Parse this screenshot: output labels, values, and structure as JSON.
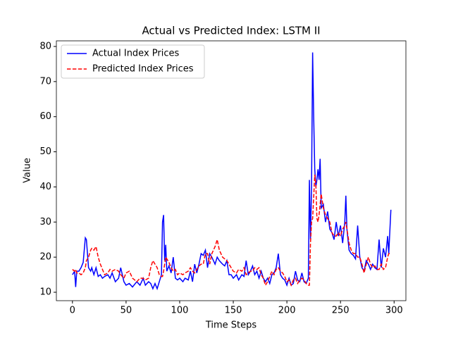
{
  "chart_data": {
    "type": "line",
    "title": "Actual vs Predicted Index: LSTM II",
    "x_label": "Time Steps",
    "y_label": "Value",
    "x": [
      0,
      2,
      3,
      4,
      6,
      8,
      10,
      12,
      13,
      15,
      17,
      18,
      20,
      22,
      24,
      26,
      28,
      30,
      33,
      35,
      37,
      40,
      43,
      45,
      48,
      50,
      53,
      56,
      60,
      63,
      66,
      68,
      71,
      73,
      75,
      77,
      79,
      81,
      83,
      84,
      85,
      86,
      87,
      88,
      90,
      92,
      94,
      96,
      98,
      100,
      103,
      105,
      108,
      110,
      112,
      114,
      116,
      118,
      120,
      122,
      124,
      126,
      128,
      130,
      133,
      135,
      137,
      140,
      142,
      144,
      146,
      148,
      150,
      153,
      155,
      158,
      160,
      162,
      164,
      166,
      168,
      170,
      172,
      174,
      176,
      178,
      180,
      182,
      184,
      186,
      188,
      190,
      192,
      194,
      196,
      198,
      200,
      202,
      204,
      206,
      208,
      210,
      212,
      214,
      216,
      218,
      220,
      221,
      222,
      223,
      224,
      225,
      226,
      227,
      228,
      229,
      230,
      231,
      232,
      234,
      236,
      238,
      240,
      242,
      244,
      246,
      248,
      250,
      252,
      254,
      255,
      256,
      258,
      260,
      262,
      264,
      266,
      268,
      270,
      272,
      274,
      276,
      278,
      280,
      282,
      284,
      286,
      288,
      290,
      292,
      294,
      295,
      297
    ],
    "series": [
      {
        "name": "Actual Index Prices",
        "color": "#0000ff",
        "linestyle": "solid",
        "values": [
          15,
          16,
          11.5,
          16,
          16,
          17,
          18.5,
          25.5,
          25,
          17,
          16,
          17,
          15,
          17,
          14.5,
          15,
          14,
          14.5,
          15,
          14,
          15.5,
          13,
          14,
          17,
          13,
          12,
          12.5,
          11.5,
          13,
          12,
          14,
          12,
          13,
          12.5,
          11,
          12.5,
          11,
          13,
          15,
          30,
          32,
          19,
          23.5,
          16,
          17.5,
          15.5,
          20,
          14,
          13.5,
          14,
          13,
          14,
          13.5,
          16,
          13,
          18,
          15.5,
          18,
          21,
          20.5,
          22,
          17,
          21,
          20,
          18,
          20,
          19,
          18,
          17.5,
          19,
          15,
          15,
          14,
          15,
          13.5,
          15,
          14.5,
          19,
          15,
          16,
          17.5,
          15,
          16,
          14,
          16,
          14,
          13,
          14,
          12.5,
          15,
          15.5,
          17,
          21,
          15,
          14,
          13.5,
          12,
          14,
          12,
          12.5,
          16,
          13.5,
          13,
          15.5,
          13,
          12.5,
          14,
          42,
          25,
          40,
          78.3,
          60,
          45,
          40,
          42,
          45,
          42,
          48,
          34,
          35,
          30,
          33,
          28,
          27,
          25,
          30,
          26,
          29,
          24,
          30,
          37.5,
          28,
          22,
          21,
          20.5,
          19.5,
          29,
          20,
          17,
          16,
          19,
          18,
          16.5,
          18,
          17,
          16.5,
          25,
          17,
          22.5,
          20,
          26,
          21,
          33.5
        ]
      },
      {
        "name": "Predicted Index Prices",
        "color": "#ff0000",
        "linestyle": "dashed",
        "values": [
          16.5,
          16,
          16.5,
          15.5,
          15.5,
          15,
          15.5,
          17,
          19,
          20,
          22,
          22.5,
          22,
          23,
          20,
          18,
          16.5,
          15,
          15.5,
          16.5,
          16,
          16.5,
          16,
          15,
          14,
          15.5,
          16,
          14,
          13,
          14,
          14,
          13.5,
          14,
          17,
          19,
          18,
          17,
          15,
          14.5,
          14.5,
          16,
          18,
          20,
          19.5,
          18.5,
          17,
          16,
          16.5,
          15,
          15.5,
          15,
          15.5,
          16,
          17,
          16,
          15.5,
          16.5,
          17.5,
          18,
          18,
          21,
          21,
          18,
          21,
          23,
          25,
          22,
          20,
          19.5,
          19,
          18,
          17,
          16,
          15.5,
          16.5,
          16,
          17,
          15,
          15.5,
          16,
          16,
          17,
          16.5,
          17,
          15,
          14,
          12,
          13,
          14.5,
          16,
          15,
          16.5,
          17,
          16,
          15.5,
          14.5,
          13,
          13.5,
          12,
          13.5,
          14,
          12.5,
          13.5,
          14,
          13.5,
          12.5,
          12,
          12,
          24,
          30,
          31,
          37,
          43.5,
          41,
          31,
          30,
          32,
          35,
          38,
          34,
          32,
          31,
          30,
          27,
          26,
          26,
          27,
          26,
          28,
          29,
          30,
          28,
          24,
          22,
          21,
          21,
          20,
          20,
          18,
          15.5,
          18,
          20,
          18,
          17,
          17.5,
          16.5,
          16.5,
          18,
          16.5,
          17,
          20,
          21,
          21
        ]
      }
    ],
    "xlim": [
      -15,
      311
    ],
    "ylim": [
      7.6,
      81.6
    ],
    "xticks": [
      0,
      50,
      100,
      150,
      200,
      250,
      300
    ],
    "yticks": [
      10,
      20,
      30,
      40,
      50,
      60,
      70,
      80
    ],
    "legend": "upper left"
  }
}
